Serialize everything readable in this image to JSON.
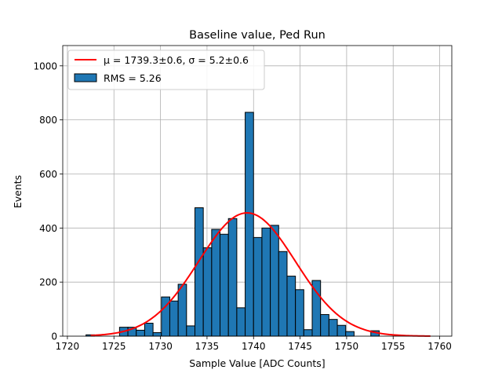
{
  "chart_data": {
    "type": "bar",
    "title": "Baseline value, Ped Run",
    "xlabel": "Sample Value [ADC Counts]",
    "ylabel": "Events",
    "xlim": [
      1719.5,
      1761.3
    ],
    "ylim": [
      0,
      1075
    ],
    "xticks": [
      1720,
      1725,
      1730,
      1735,
      1740,
      1745,
      1750,
      1755,
      1760
    ],
    "yticks": [
      0,
      200,
      400,
      600,
      800,
      1000
    ],
    "grid": true,
    "legend_position": "top-left",
    "bin_width": 0.9,
    "bins": [
      {
        "x": 1722.0,
        "value": 5
      },
      {
        "x": 1722.9,
        "value": 0
      },
      {
        "x": 1723.8,
        "value": 0
      },
      {
        "x": 1724.7,
        "value": 0
      },
      {
        "x": 1725.6,
        "value": 33
      },
      {
        "x": 1726.5,
        "value": 33
      },
      {
        "x": 1727.4,
        "value": 22
      },
      {
        "x": 1728.3,
        "value": 48
      },
      {
        "x": 1729.2,
        "value": 13
      },
      {
        "x": 1730.1,
        "value": 145
      },
      {
        "x": 1731.0,
        "value": 130
      },
      {
        "x": 1731.9,
        "value": 192
      },
      {
        "x": 1732.8,
        "value": 38
      },
      {
        "x": 1733.7,
        "value": 475
      },
      {
        "x": 1734.6,
        "value": 327
      },
      {
        "x": 1735.5,
        "value": 395
      },
      {
        "x": 1736.4,
        "value": 377
      },
      {
        "x": 1737.3,
        "value": 435
      },
      {
        "x": 1738.2,
        "value": 105
      },
      {
        "x": 1739.1,
        "value": 828
      },
      {
        "x": 1740.0,
        "value": 365
      },
      {
        "x": 1740.9,
        "value": 400
      },
      {
        "x": 1741.8,
        "value": 410
      },
      {
        "x": 1742.7,
        "value": 313
      },
      {
        "x": 1743.6,
        "value": 222
      },
      {
        "x": 1744.5,
        "value": 172
      },
      {
        "x": 1745.4,
        "value": 24
      },
      {
        "x": 1746.3,
        "value": 206
      },
      {
        "x": 1747.2,
        "value": 80
      },
      {
        "x": 1748.1,
        "value": 62
      },
      {
        "x": 1749.0,
        "value": 40
      },
      {
        "x": 1749.9,
        "value": 17
      },
      {
        "x": 1750.8,
        "value": 0
      },
      {
        "x": 1751.7,
        "value": 0
      },
      {
        "x": 1752.6,
        "value": 20
      }
    ],
    "series": [
      {
        "name": "RMS = 5.26",
        "kind": "histogram",
        "color": "#1f77b4",
        "edge_color": "#000000"
      },
      {
        "name": "μ = 1739.3±0.6, σ = 5.2±0.6",
        "kind": "gaussian_fit",
        "color": "#ff0000",
        "mu": 1739.3,
        "sigma": 5.2,
        "amplitude": 456,
        "x_range": [
          1722.5,
          1759.0
        ]
      }
    ],
    "legend": [
      {
        "label": "μ = 1739.3±0.6, σ = 5.2±0.6",
        "key": "fit"
      },
      {
        "label": "RMS = 5.26",
        "key": "hist"
      }
    ]
  }
}
